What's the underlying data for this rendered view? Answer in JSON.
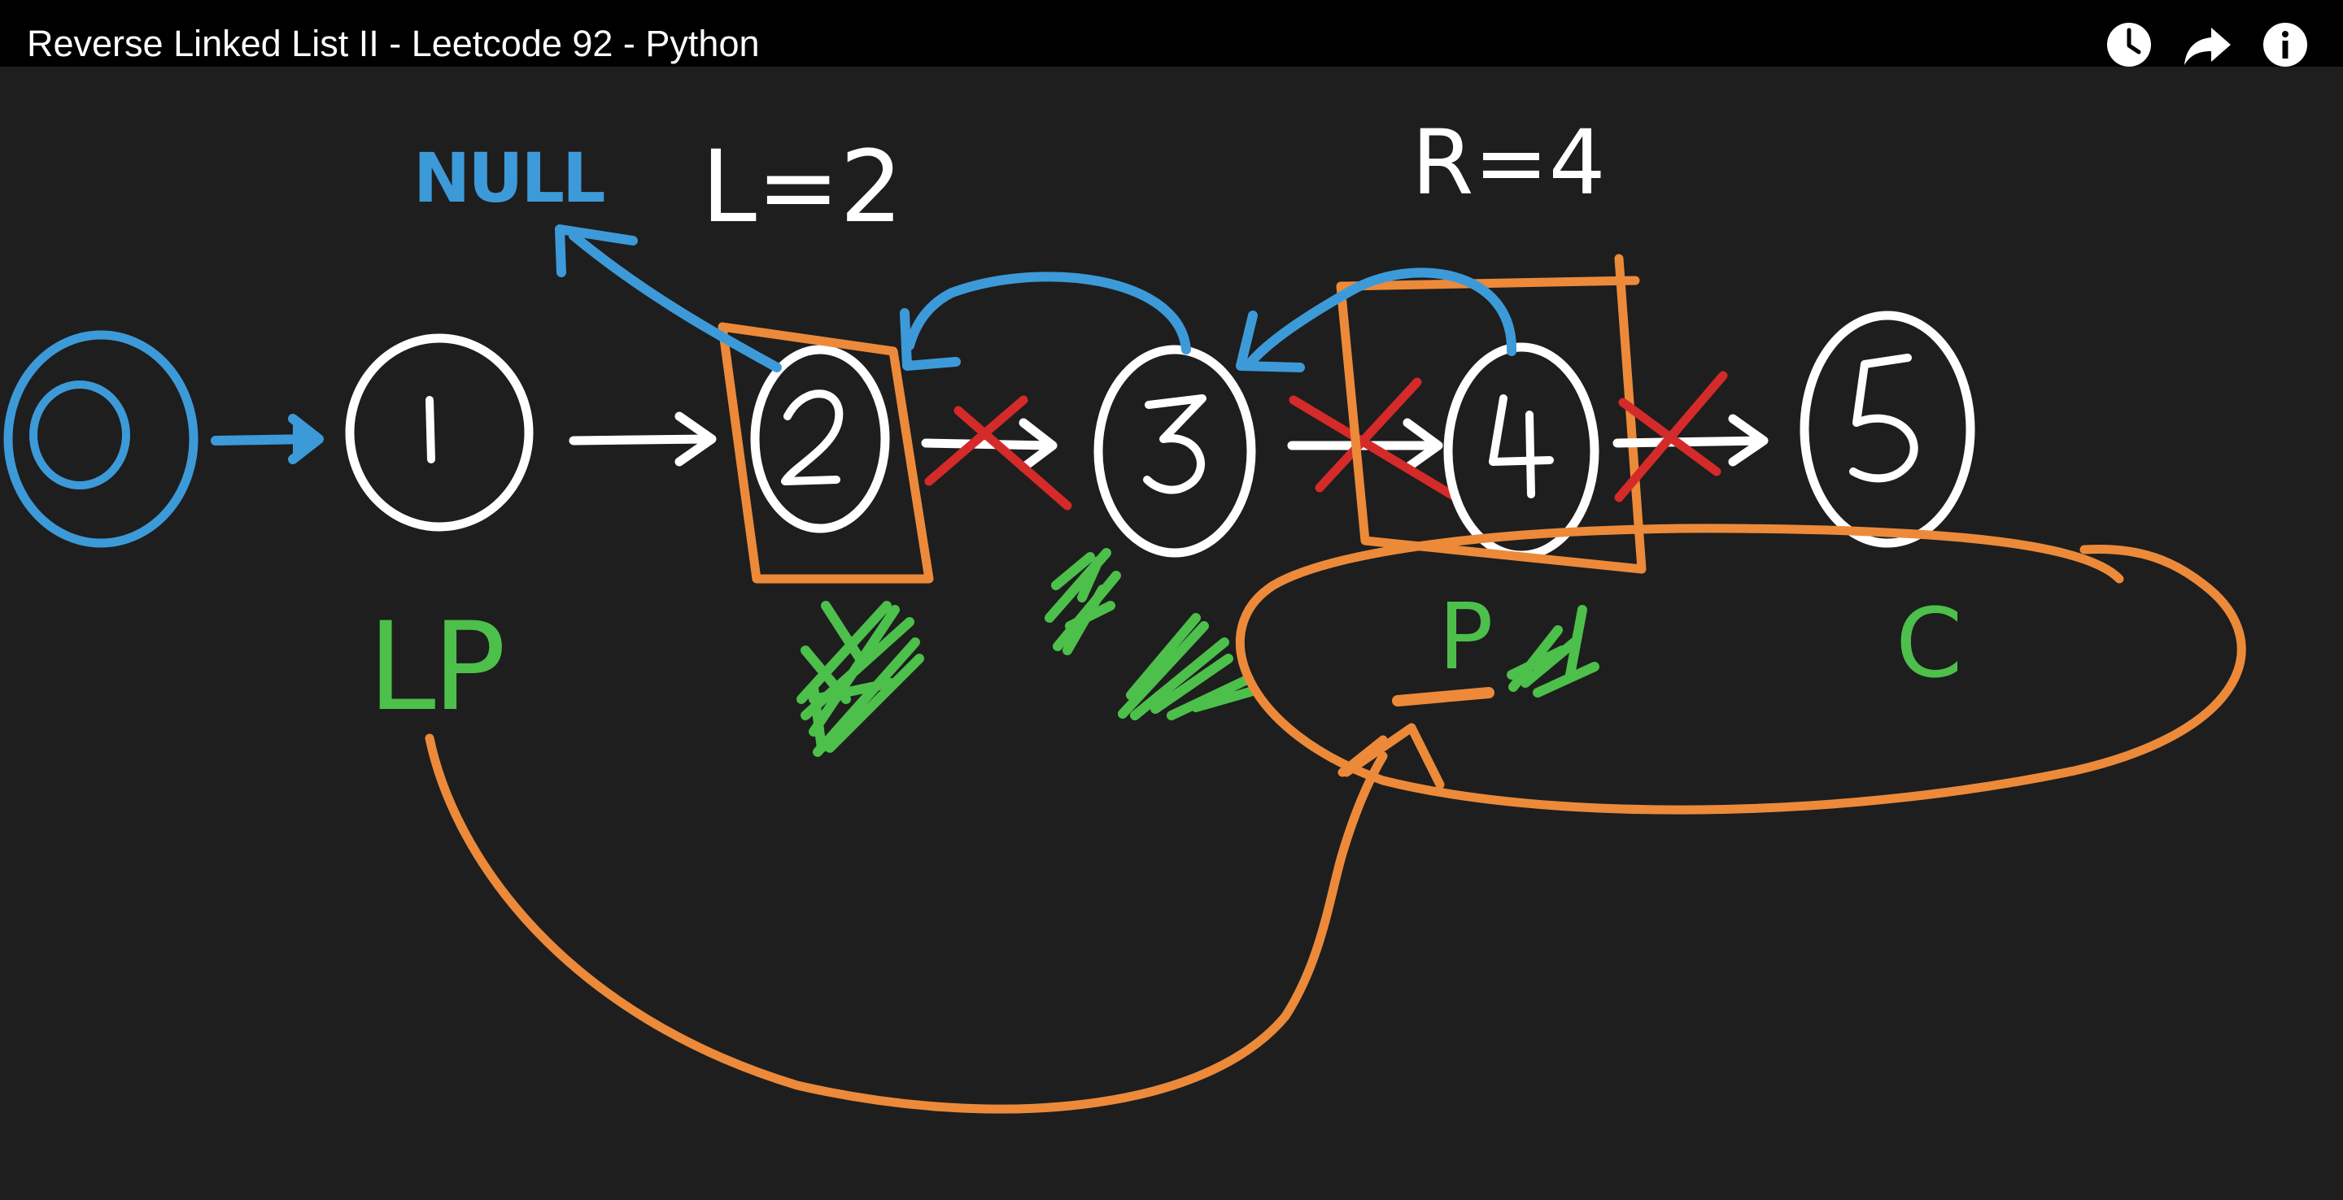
{
  "video": {
    "title": "Reverse Linked List II - Leetcode 92 - Python"
  },
  "controls": {
    "watch_later_icon": "clock-icon",
    "share_icon": "share-arrow-icon",
    "info_icon": "info-icon"
  },
  "whiteboard": {
    "null_label": "NULL",
    "left_label": "L=2",
    "right_label": "R=4",
    "nodes": [
      "0",
      "1",
      "2",
      "3",
      "4",
      "5"
    ],
    "pointer_labels": {
      "left_prev": "LP",
      "prev": "P",
      "curr": "C"
    }
  },
  "colors": {
    "background": "#1e1e1e",
    "title_bar": "#000000",
    "ink_white": "#ffffff",
    "ink_blue": "#3d9ad9",
    "ink_orange": "#ec8a3a",
    "ink_red": "#d42a2a",
    "ink_green": "#4cc04a"
  }
}
